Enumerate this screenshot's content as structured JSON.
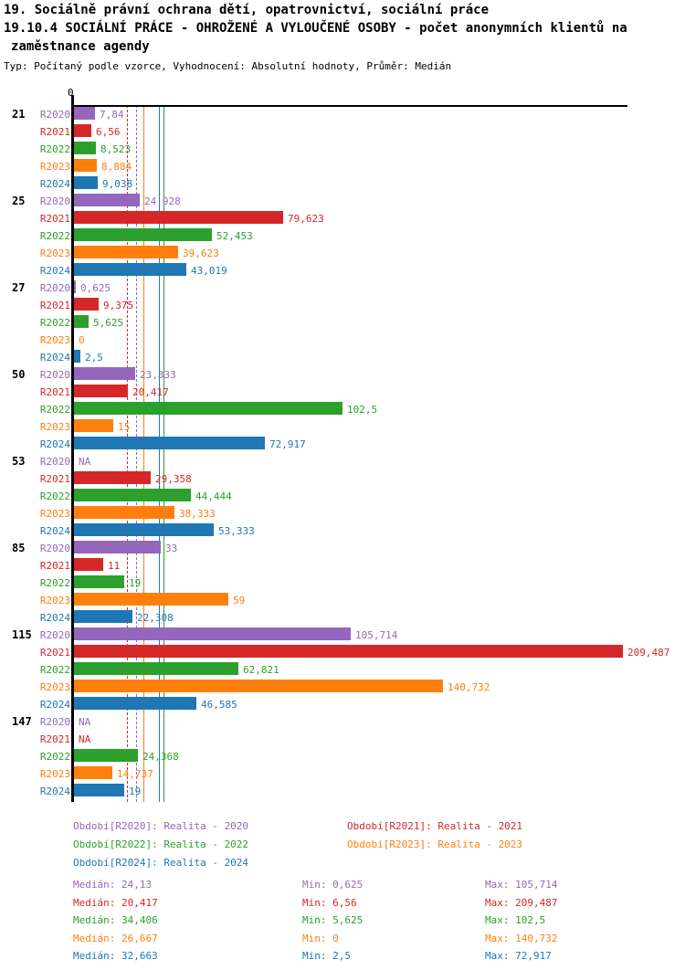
{
  "header": {
    "line1": "19. Sociálně právní ochrana dětí, opatrovnictví, sociální práce",
    "line2": "19.10.4 SOCIÁLNÍ PRÁCE - OHROŽENÉ A VYLOUČENÉ OSOBY - počet anonymních klientů na",
    "line3": "zaměstnance agendy",
    "meta": "Typ: Počítaný podle vzorce, Vyhodnocení: Absolutní hodnoty, Průměr: Medián"
  },
  "chart_data": {
    "type": "bar",
    "orientation": "horizontal",
    "zero_label": "0",
    "axis_color": "#000000",
    "xmax": 211.5,
    "series": [
      {
        "id": "R2020",
        "name": "Realita - 2020",
        "color": "#9467bd",
        "median": 24.13,
        "line_style": "dashed"
      },
      {
        "id": "R2021",
        "name": "Realita - 2021",
        "color": "#d62728",
        "median": 20.417,
        "line_style": "dashed"
      },
      {
        "id": "R2022",
        "name": "Realita - 2022",
        "color": "#2ca02c",
        "median": 34.406,
        "line_style": "solid"
      },
      {
        "id": "R2023",
        "name": "Realita - 2023",
        "color": "#ff7f0e",
        "median": 26.667,
        "line_style": "solid"
      },
      {
        "id": "R2024",
        "name": "Realita - 2024",
        "color": "#1f77b4",
        "median": 32.663,
        "line_style": "solid"
      }
    ],
    "groups": [
      {
        "label": "21",
        "bars": [
          {
            "series": "R2020",
            "value": 7.84,
            "label": "7,84"
          },
          {
            "series": "R2021",
            "value": 6.56,
            "label": "6,56"
          },
          {
            "series": "R2022",
            "value": 8.523,
            "label": "8,523"
          },
          {
            "series": "R2023",
            "value": 8.884,
            "label": "8,884"
          },
          {
            "series": "R2024",
            "value": 9.038,
            "label": "9,038"
          }
        ]
      },
      {
        "label": "25",
        "bars": [
          {
            "series": "R2020",
            "value": 24.928,
            "label": "24,928"
          },
          {
            "series": "R2021",
            "value": 79.623,
            "label": "79,623"
          },
          {
            "series": "R2022",
            "value": 52.453,
            "label": "52,453"
          },
          {
            "series": "R2023",
            "value": 39.623,
            "label": "39,623"
          },
          {
            "series": "R2024",
            "value": 43.019,
            "label": "43,019"
          }
        ]
      },
      {
        "label": "27",
        "bars": [
          {
            "series": "R2020",
            "value": 0.625,
            "label": "0,625"
          },
          {
            "series": "R2021",
            "value": 9.375,
            "label": "9,375"
          },
          {
            "series": "R2022",
            "value": 5.625,
            "label": "5,625"
          },
          {
            "series": "R2023",
            "value": 0,
            "label": "0"
          },
          {
            "series": "R2024",
            "value": 2.5,
            "label": "2,5"
          }
        ]
      },
      {
        "label": "50",
        "bars": [
          {
            "series": "R2020",
            "value": 23.333,
            "label": "23,333"
          },
          {
            "series": "R2021",
            "value": 20.417,
            "label": "20,417"
          },
          {
            "series": "R2022",
            "value": 102.5,
            "label": "102,5"
          },
          {
            "series": "R2023",
            "value": 15,
            "label": "15"
          },
          {
            "series": "R2024",
            "value": 72.917,
            "label": "72,917"
          }
        ]
      },
      {
        "label": "53",
        "bars": [
          {
            "series": "R2020",
            "value": null,
            "label": "NA"
          },
          {
            "series": "R2021",
            "value": 29.358,
            "label": "29,358"
          },
          {
            "series": "R2022",
            "value": 44.444,
            "label": "44,444"
          },
          {
            "series": "R2023",
            "value": 38.333,
            "label": "38,333"
          },
          {
            "series": "R2024",
            "value": 53.333,
            "label": "53,333"
          }
        ]
      },
      {
        "label": "85",
        "bars": [
          {
            "series": "R2020",
            "value": 33,
            "label": "33"
          },
          {
            "series": "R2021",
            "value": 11,
            "label": "11"
          },
          {
            "series": "R2022",
            "value": 19,
            "label": "19"
          },
          {
            "series": "R2023",
            "value": 59,
            "label": "59"
          },
          {
            "series": "R2024",
            "value": 22.308,
            "label": "22,308"
          }
        ]
      },
      {
        "label": "115",
        "bars": [
          {
            "series": "R2020",
            "value": 105.714,
            "label": "105,714"
          },
          {
            "series": "R2021",
            "value": 209.487,
            "label": "209,487"
          },
          {
            "series": "R2022",
            "value": 62.821,
            "label": "62,821"
          },
          {
            "series": "R2023",
            "value": 140.732,
            "label": "140,732"
          },
          {
            "series": "R2024",
            "value": 46.585,
            "label": "46,585"
          }
        ]
      },
      {
        "label": "147",
        "bars": [
          {
            "series": "R2020",
            "value": null,
            "label": "NA"
          },
          {
            "series": "R2021",
            "value": null,
            "label": "NA"
          },
          {
            "series": "R2022",
            "value": 24.368,
            "label": "24,368"
          },
          {
            "series": "R2023",
            "value": 14.737,
            "label": "14,737"
          },
          {
            "series": "R2024",
            "value": 19,
            "label": "19"
          }
        ]
      }
    ]
  },
  "legend": {
    "items": [
      {
        "text": "Období[R2020]: Realita - 2020",
        "color": "#9467bd"
      },
      {
        "text": "Období[R2021]: Realita - 2021",
        "color": "#d62728"
      },
      {
        "text": "Období[R2022]: Realita - 2022",
        "color": "#2ca02c"
      },
      {
        "text": "Období[R2023]: Realita - 2023",
        "color": "#ff7f0e"
      },
      {
        "text": "Období[R2024]: Realita - 2024",
        "color": "#1f77b4"
      }
    ]
  },
  "stats": {
    "rows": [
      {
        "color": "#9467bd",
        "median": "Medián: 24,13",
        "min": "Min: 0,625",
        "max": "Max: 105,714"
      },
      {
        "color": "#d62728",
        "median": "Medián: 20,417",
        "min": "Min: 6,56",
        "max": "Max: 209,487"
      },
      {
        "color": "#2ca02c",
        "median": "Medián: 34,406",
        "min": "Min: 5,625",
        "max": "Max: 102,5"
      },
      {
        "color": "#ff7f0e",
        "median": "Medián: 26,667",
        "min": "Min: 0",
        "max": "Max: 140,732"
      },
      {
        "color": "#1f77b4",
        "median": "Medián: 32,663",
        "min": "Min: 2,5",
        "max": "Max: 72,917"
      }
    ]
  }
}
